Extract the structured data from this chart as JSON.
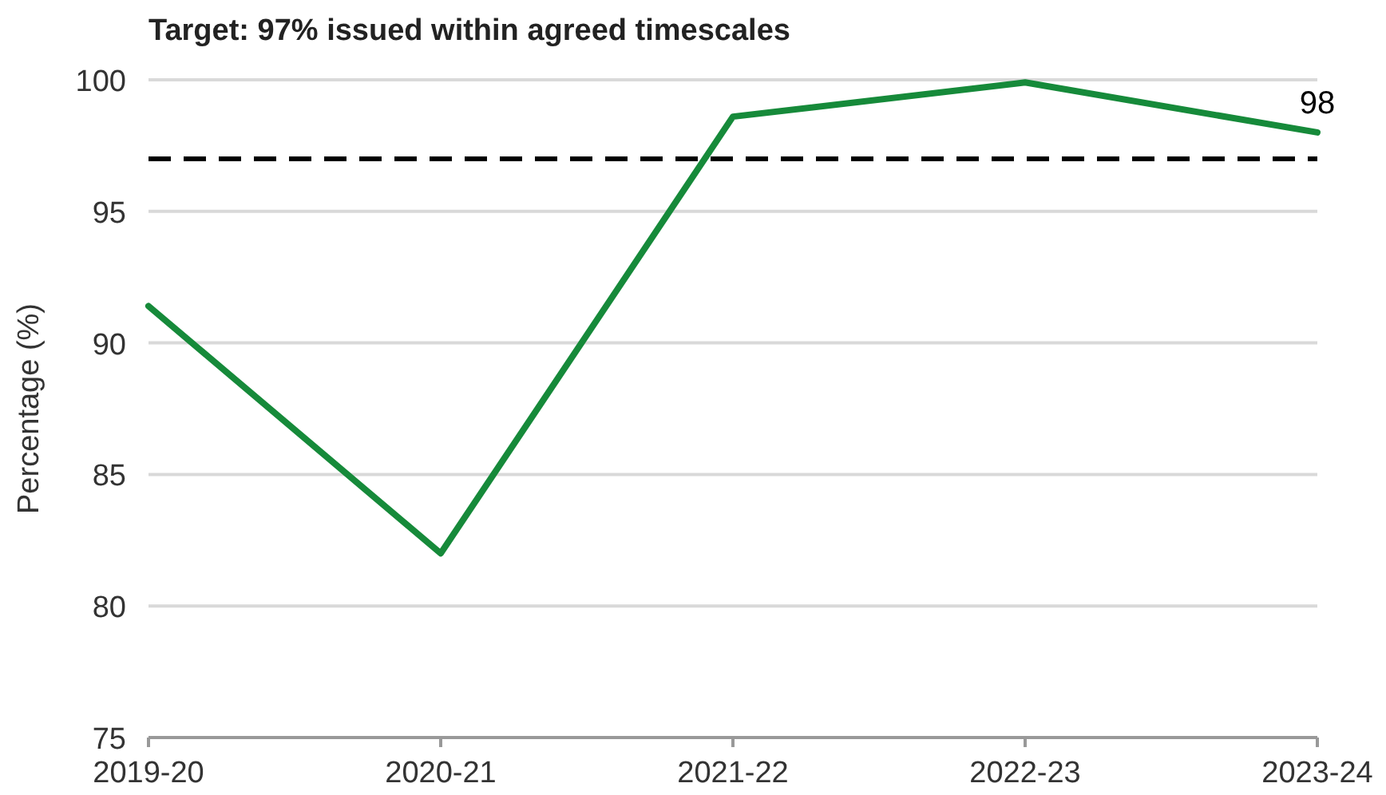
{
  "chart_data": {
    "type": "line",
    "title": "Target: 97% issued within agreed timescales",
    "ylabel": "Percentage (%)",
    "categories": [
      "2019-20",
      "2020-21",
      "2021-22",
      "2022-23",
      "2023-24"
    ],
    "series": [
      {
        "color": "#168a3a",
        "values": [
          91.4,
          82.0,
          98.6,
          99.9,
          98
        ],
        "value_labels": [
          null,
          null,
          null,
          null,
          "98"
        ]
      }
    ],
    "ylim": [
      75,
      100
    ],
    "yticks": [
      75,
      80,
      85,
      90,
      95,
      100
    ],
    "grid": "y",
    "line_style": "solid",
    "marker": "none",
    "ref_lines": [
      {
        "axis": "y",
        "value": 97,
        "color": "#000000",
        "line_style": "dashed"
      }
    ]
  }
}
